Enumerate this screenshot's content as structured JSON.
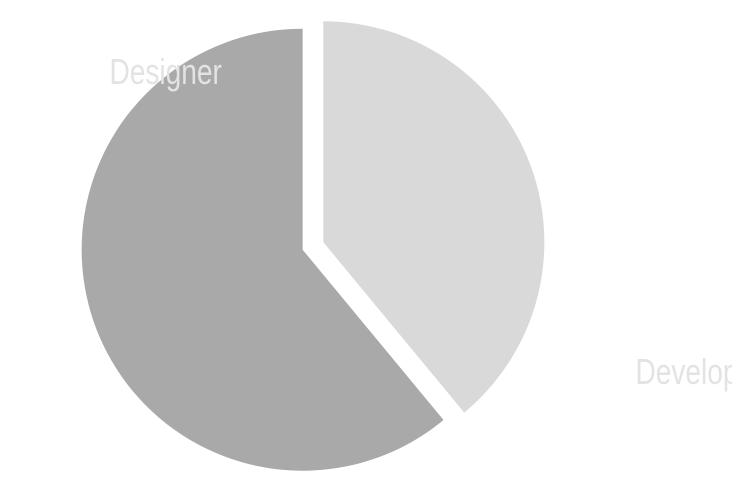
{
  "chart_data": {
    "type": "pie",
    "title": "",
    "slices": [
      {
        "label": "Developer",
        "value": 39,
        "color": "#d9d9d9"
      },
      {
        "label": "Designer",
        "value": 61,
        "color": "#a9a9a9"
      }
    ],
    "start": "top",
    "direction": "clockwise",
    "exploded": true,
    "legend": "none",
    "label_color": "#e3e3e3"
  }
}
